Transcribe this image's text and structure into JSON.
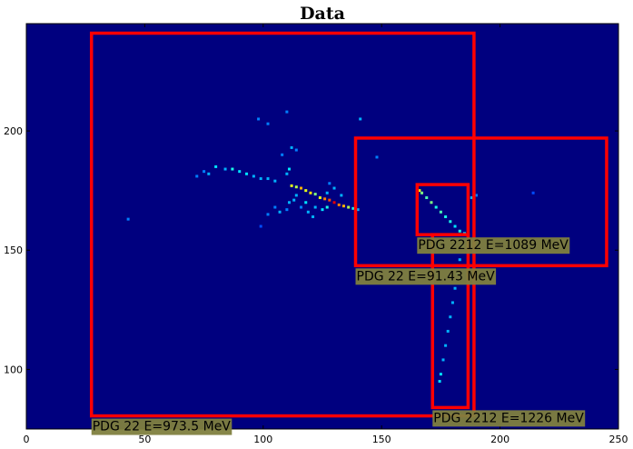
{
  "chart_data": {
    "type": "heatmap",
    "title": "Data",
    "xlabel": "",
    "ylabel": "",
    "xlim": [
      0,
      250
    ],
    "ylim": [
      75,
      245
    ],
    "x_ticks": [
      0,
      50,
      100,
      150,
      200,
      250
    ],
    "y_ticks": [
      100,
      150,
      200
    ],
    "background_color": "#00007f",
    "box_color": "#ff0000",
    "label_bg_color": "#7f7f3f",
    "boxes": [
      {
        "label": "PDG 22 E=973.5 MeV",
        "x": [
          27.5,
          189
        ],
        "y": [
          80.5,
          241
        ]
      },
      {
        "label": "PDG 22 E=91.43 MeV",
        "x": [
          139,
          245
        ],
        "y": [
          143.5,
          197
        ]
      },
      {
        "label": "PDG 2212 E=1089 MeV",
        "x": [
          165,
          186.5
        ],
        "y": [
          156.5,
          177.5
        ]
      },
      {
        "label": "PDG 2212 E=1226 MeV",
        "x": [
          171.5,
          186.5
        ],
        "y": [
          84,
          156.5
        ]
      }
    ],
    "hits": [
      {
        "x": 112,
        "y": 177,
        "v": 0.6
      },
      {
        "x": 114,
        "y": 176.5,
        "v": 0.55
      },
      {
        "x": 116,
        "y": 176,
        "v": 0.7
      },
      {
        "x": 118,
        "y": 175,
        "v": 0.6
      },
      {
        "x": 120,
        "y": 174,
        "v": 0.65
      },
      {
        "x": 122,
        "y": 173.5,
        "v": 0.5
      },
      {
        "x": 124,
        "y": 172,
        "v": 0.6
      },
      {
        "x": 126,
        "y": 171.5,
        "v": 0.75
      },
      {
        "x": 128,
        "y": 171,
        "v": 0.8
      },
      {
        "x": 130,
        "y": 170,
        "v": 0.9
      },
      {
        "x": 132,
        "y": 169,
        "v": 0.75
      },
      {
        "x": 134,
        "y": 168.5,
        "v": 0.7
      },
      {
        "x": 136,
        "y": 168,
        "v": 0.55
      },
      {
        "x": 138,
        "y": 167.5,
        "v": 0.4
      },
      {
        "x": 140,
        "y": 167,
        "v": 0.3
      },
      {
        "x": 127,
        "y": 168,
        "v": 0.4
      },
      {
        "x": 125,
        "y": 167,
        "v": 0.35
      },
      {
        "x": 122,
        "y": 168,
        "v": 0.3
      },
      {
        "x": 118,
        "y": 170,
        "v": 0.35
      },
      {
        "x": 119,
        "y": 166,
        "v": 0.3
      },
      {
        "x": 121,
        "y": 164,
        "v": 0.3
      },
      {
        "x": 114,
        "y": 173,
        "v": 0.3
      },
      {
        "x": 113,
        "y": 171,
        "v": 0.3
      },
      {
        "x": 116,
        "y": 168,
        "v": 0.25
      },
      {
        "x": 110,
        "y": 167,
        "v": 0.25
      },
      {
        "x": 107,
        "y": 166,
        "v": 0.3
      },
      {
        "x": 111,
        "y": 170,
        "v": 0.3
      },
      {
        "x": 110,
        "y": 182,
        "v": 0.3
      },
      {
        "x": 111,
        "y": 184,
        "v": 0.35
      },
      {
        "x": 112,
        "y": 193,
        "v": 0.3
      },
      {
        "x": 114,
        "y": 192,
        "v": 0.25
      },
      {
        "x": 108,
        "y": 190,
        "v": 0.25
      },
      {
        "x": 105,
        "y": 179,
        "v": 0.3
      },
      {
        "x": 102,
        "y": 180,
        "v": 0.3
      },
      {
        "x": 99,
        "y": 180,
        "v": 0.3
      },
      {
        "x": 96,
        "y": 181,
        "v": 0.3
      },
      {
        "x": 93,
        "y": 182,
        "v": 0.35
      },
      {
        "x": 90,
        "y": 183,
        "v": 0.35
      },
      {
        "x": 87,
        "y": 184,
        "v": 0.4
      },
      {
        "x": 84,
        "y": 184,
        "v": 0.3
      },
      {
        "x": 80,
        "y": 185,
        "v": 0.35
      },
      {
        "x": 77,
        "y": 182,
        "v": 0.3
      },
      {
        "x": 75,
        "y": 183,
        "v": 0.25
      },
      {
        "x": 102,
        "y": 165,
        "v": 0.25
      },
      {
        "x": 130,
        "y": 176,
        "v": 0.3
      },
      {
        "x": 127,
        "y": 174,
        "v": 0.3
      },
      {
        "x": 128,
        "y": 178,
        "v": 0.25
      },
      {
        "x": 133,
        "y": 173,
        "v": 0.3
      },
      {
        "x": 98,
        "y": 205,
        "v": 0.25
      },
      {
        "x": 102,
        "y": 203,
        "v": 0.25
      },
      {
        "x": 110,
        "y": 208,
        "v": 0.25
      },
      {
        "x": 141,
        "y": 205,
        "v": 0.3
      },
      {
        "x": 148,
        "y": 189,
        "v": 0.25
      },
      {
        "x": 43,
        "y": 163,
        "v": 0.25
      },
      {
        "x": 72,
        "y": 181,
        "v": 0.25
      },
      {
        "x": 105,
        "y": 168,
        "v": 0.25
      },
      {
        "x": 99,
        "y": 160,
        "v": 0.2
      },
      {
        "x": 166,
        "y": 175,
        "v": 0.6
      },
      {
        "x": 167,
        "y": 174,
        "v": 0.5
      },
      {
        "x": 169,
        "y": 172,
        "v": 0.45
      },
      {
        "x": 171,
        "y": 170,
        "v": 0.5
      },
      {
        "x": 173,
        "y": 168,
        "v": 0.4
      },
      {
        "x": 175,
        "y": 166,
        "v": 0.45
      },
      {
        "x": 177,
        "y": 164,
        "v": 0.4
      },
      {
        "x": 179,
        "y": 162,
        "v": 0.4
      },
      {
        "x": 181,
        "y": 160,
        "v": 0.35
      },
      {
        "x": 183,
        "y": 158,
        "v": 0.4
      },
      {
        "x": 185,
        "y": 157,
        "v": 0.35
      },
      {
        "x": 184,
        "y": 152,
        "v": 0.3
      },
      {
        "x": 183,
        "y": 146,
        "v": 0.3
      },
      {
        "x": 182,
        "y": 140,
        "v": 0.3
      },
      {
        "x": 181,
        "y": 134,
        "v": 0.3
      },
      {
        "x": 180,
        "y": 128,
        "v": 0.3
      },
      {
        "x": 179,
        "y": 122,
        "v": 0.3
      },
      {
        "x": 178,
        "y": 116,
        "v": 0.3
      },
      {
        "x": 177,
        "y": 110,
        "v": 0.3
      },
      {
        "x": 176,
        "y": 104,
        "v": 0.3
      },
      {
        "x": 175,
        "y": 98,
        "v": 0.35
      },
      {
        "x": 174.5,
        "y": 95,
        "v": 0.35
      },
      {
        "x": 188,
        "y": 172,
        "v": 0.3
      },
      {
        "x": 190,
        "y": 173,
        "v": 0.25
      },
      {
        "x": 214,
        "y": 174,
        "v": 0.2
      }
    ]
  }
}
